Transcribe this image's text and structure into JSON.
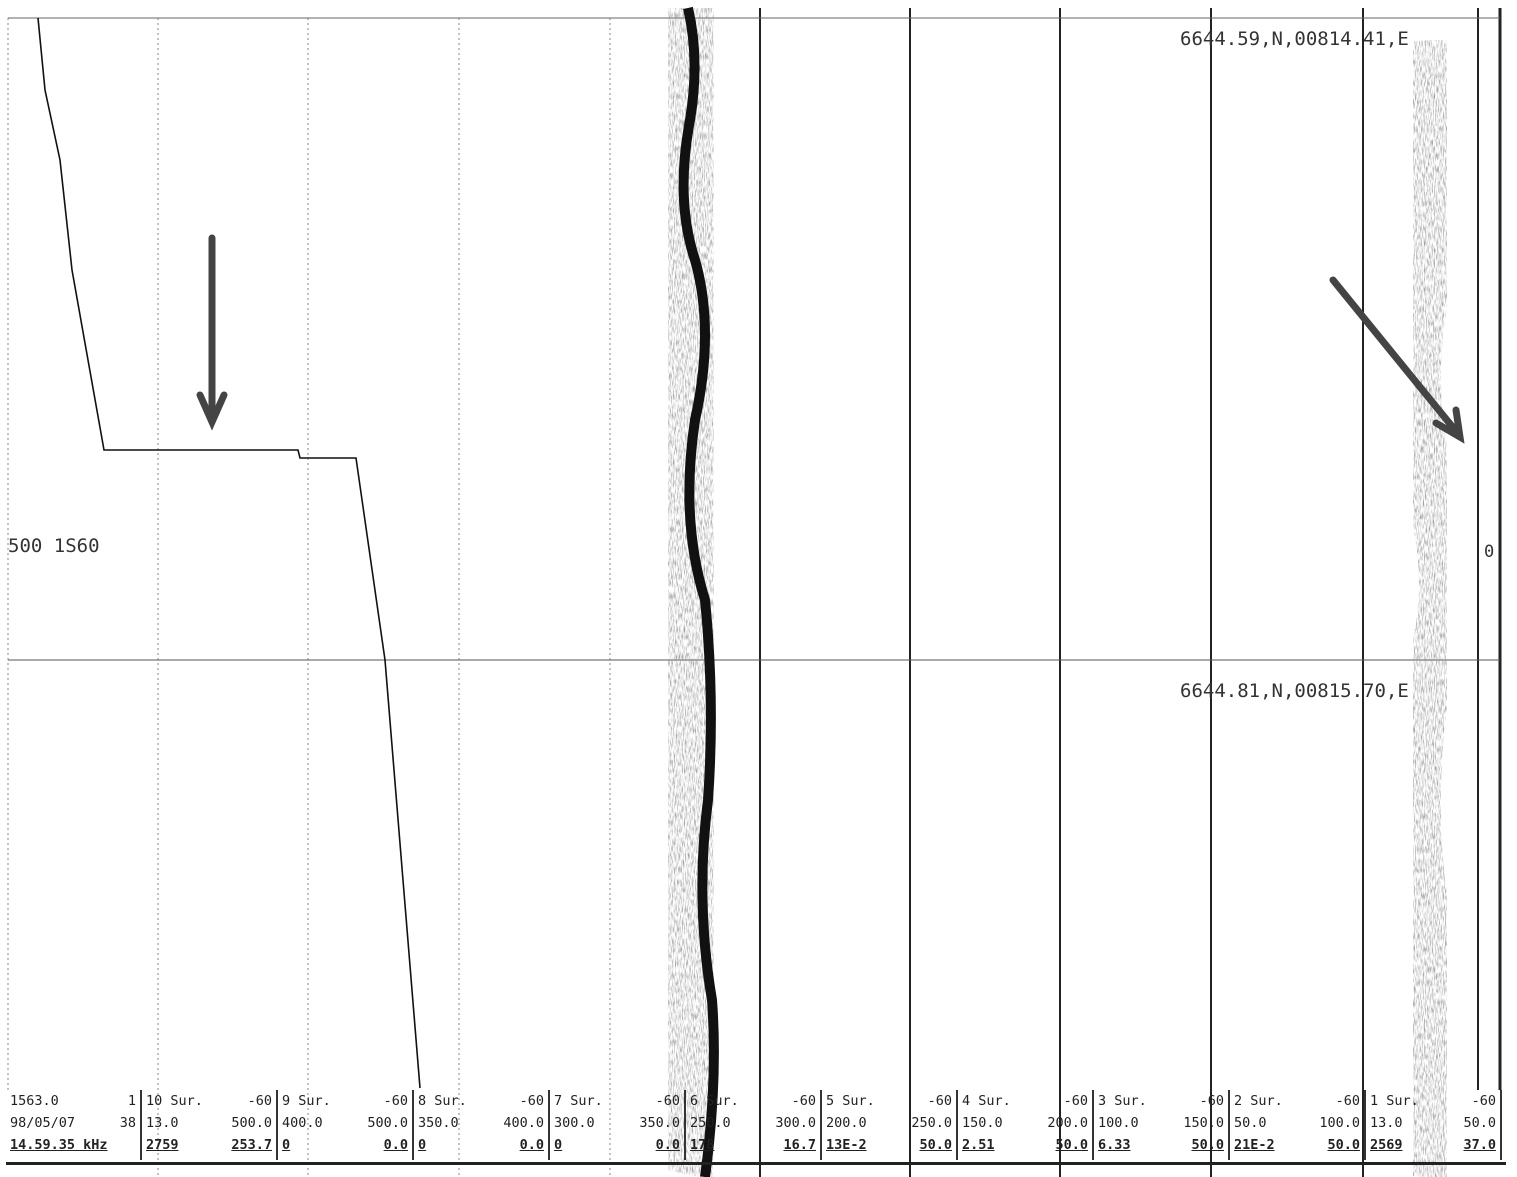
{
  "positions": [
    "6644.59,N,00814.41,E",
    "6644.81,N,00815.70,E"
  ],
  "depth_label": "500 1S60",
  "scale_mark": "0",
  "footer": {
    "cells": [
      [
        [
          "1563.0",
          "1"
        ],
        [
          "98/05/07",
          "38"
        ],
        [
          "14.59.35 kHz",
          ""
        ]
      ],
      [
        [
          "10 Sur.",
          "-60"
        ],
        [
          "13.0",
          "500.0"
        ],
        [
          "2759",
          "253.7"
        ]
      ],
      [
        [
          "9 Sur.",
          "-60"
        ],
        [
          "400.0",
          "500.0"
        ],
        [
          "0",
          "0.0"
        ]
      ],
      [
        [
          "8 Sur.",
          "-60"
        ],
        [
          "350.0",
          "400.0"
        ],
        [
          "0",
          "0.0"
        ]
      ],
      [
        [
          "7 Sur.",
          "-60"
        ],
        [
          "300.0",
          "350.0"
        ],
        [
          "0",
          "0.0"
        ]
      ],
      [
        [
          "6 Sur.",
          "-60"
        ],
        [
          "250.0",
          "300.0"
        ],
        [
          "178",
          "16.7"
        ]
      ],
      [
        [
          "5 Sur.",
          "-60"
        ],
        [
          "200.0",
          "250.0"
        ],
        [
          "13E-2",
          "50.0"
        ]
      ],
      [
        [
          "4 Sur.",
          "-60"
        ],
        [
          "150.0",
          "200.0"
        ],
        [
          "2.51",
          "50.0"
        ]
      ],
      [
        [
          "3 Sur.",
          "-60"
        ],
        [
          "100.0",
          "150.0"
        ],
        [
          "6.33",
          "50.0"
        ]
      ],
      [
        [
          "2 Sur.",
          "-60"
        ],
        [
          "50.0",
          "100.0"
        ],
        [
          "21E-2",
          "50.0"
        ]
      ],
      [
        [
          "1 Sur.",
          "-60"
        ],
        [
          "13.0",
          "50.0"
        ],
        [
          "2569",
          "37.0"
        ]
      ]
    ]
  }
}
